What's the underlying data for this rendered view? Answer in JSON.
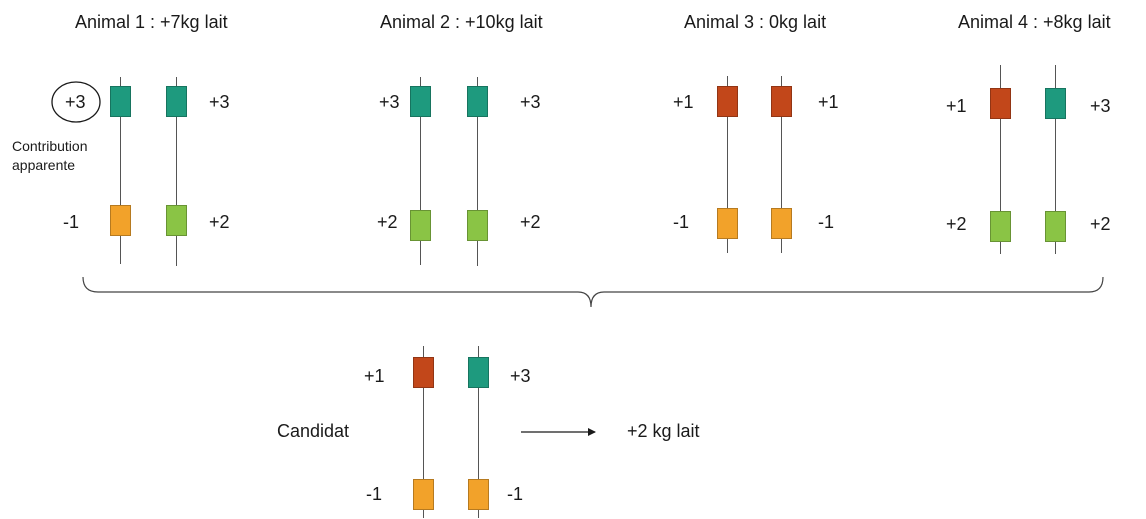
{
  "colors": {
    "teal": "#1e9a7e",
    "rust": "#c2471a",
    "orange": "#f2a22a",
    "lime": "#8ac445"
  },
  "animals": [
    {
      "title": "Animal 1 : +7kg lait",
      "top_left": "+3",
      "top_right": "+3",
      "bottom_left": "-1",
      "bottom_right": "+2",
      "alleles": [
        "teal",
        "teal",
        "orange",
        "lime"
      ],
      "note": {
        "circled_value": "+3",
        "caption_line1": "Contribution",
        "caption_line2": "apparente"
      }
    },
    {
      "title": "Animal 2 : +10kg lait",
      "top_left": "+3",
      "top_right": "+3",
      "bottom_left": "+2",
      "bottom_right": "+2",
      "alleles": [
        "teal",
        "teal",
        "lime",
        "lime"
      ]
    },
    {
      "title": "Animal 3 : 0kg lait",
      "top_left": "+1",
      "top_right": "+1",
      "bottom_left": "-1",
      "bottom_right": "-1",
      "alleles": [
        "rust",
        "rust",
        "orange",
        "orange"
      ]
    },
    {
      "title": "Animal 4 : +8kg lait",
      "top_left": "+1",
      "top_right": "+3",
      "bottom_left": "+2",
      "bottom_right": "+2",
      "alleles": [
        "rust",
        "teal",
        "lime",
        "lime"
      ]
    }
  ],
  "candidate": {
    "label": "Candidat",
    "top_left": "+1",
    "top_right": "+3",
    "bottom_left": "-1",
    "bottom_right": "-1",
    "alleles": [
      "rust",
      "teal",
      "orange",
      "orange"
    ],
    "result": "+2 kg lait"
  }
}
